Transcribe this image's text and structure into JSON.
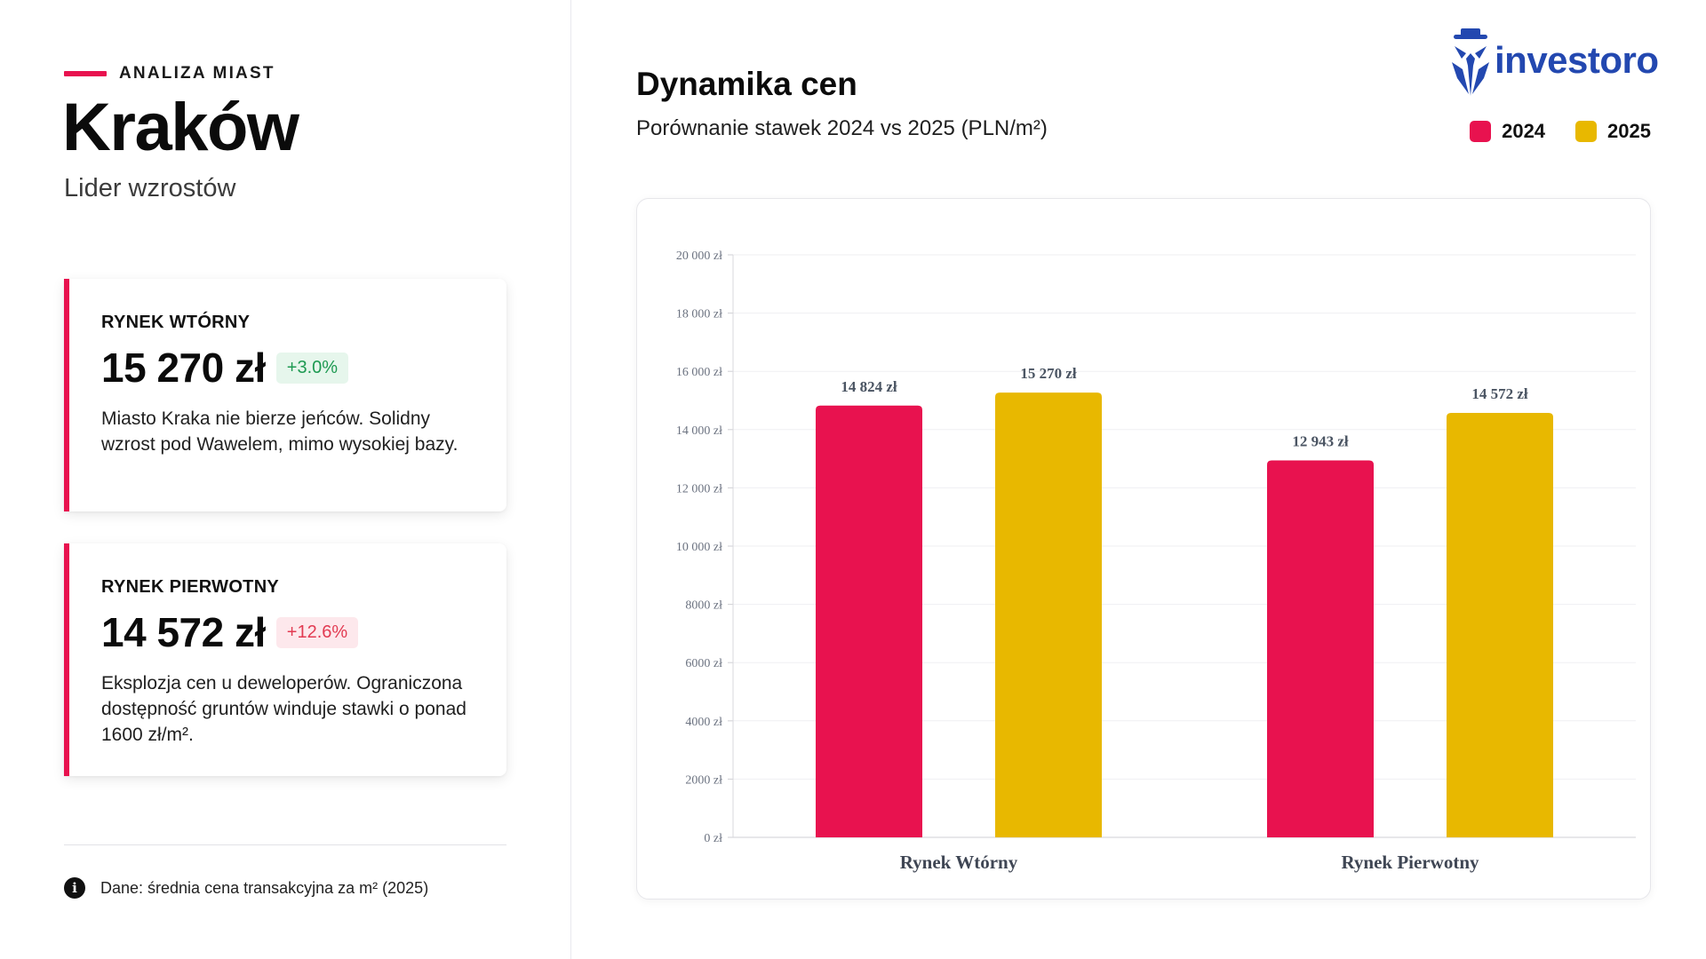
{
  "left": {
    "kicker": "ANALIZA MIAST",
    "city": "Kraków",
    "subtitle": "Lider wzrostów",
    "cards": [
      {
        "title": "RYNEK WTÓRNY",
        "value": "15 270 zł",
        "change": "+3.0%",
        "description": "Miasto Kraka nie bierze jeńców. Solidny wzrost pod Wawelem, mimo wysokiej bazy."
      },
      {
        "title": "RYNEK PIERWOTNY",
        "value": "14 572 zł",
        "change": "+12.6%",
        "description": "Eksplozja cen u deweloperów. Ograniczona dostępność gruntów winduje stawki o ponad 1600 zł/m²."
      }
    ],
    "note": "Dane: średnia cena transakcyjna za m² (2025)",
    "note_icon": "info-icon"
  },
  "header": {
    "title": "Dynamika cen",
    "subtitle": "Porównanie stawek 2024 vs 2025 (PLN/m²)",
    "logo_text": "investoro"
  },
  "colors": {
    "accent": "#e8124f",
    "series_2024": "#e8124f",
    "series_2025": "#e8b800",
    "brand": "#2348b0"
  },
  "chart_data": {
    "type": "bar",
    "title": "Dynamika cen",
    "subtitle": "Porównanie stawek 2024 vs 2025 (PLN/m²)",
    "categories": [
      "Rynek Wtórny",
      "Rynek Pierwotny"
    ],
    "series": [
      {
        "name": "2024",
        "values": [
          14824,
          12943
        ],
        "labels": [
          "14 824 zł",
          "12 943 zł"
        ]
      },
      {
        "name": "2025",
        "values": [
          15270,
          14572
        ],
        "labels": [
          "15 270 zł",
          "14 572 zł"
        ]
      }
    ],
    "ylim": [
      0,
      20000
    ],
    "yticks": [
      0,
      2000,
      4000,
      6000,
      8000,
      10000,
      12000,
      14000,
      16000,
      18000,
      20000
    ],
    "ytick_labels": [
      "0 zł",
      "2000 zł",
      "4000 zł",
      "6000 zł",
      "8000 zł",
      "10 000 zł",
      "12 000 zł",
      "14 000 zł",
      "16 000 zł",
      "18 000 zł",
      "20 000 zł"
    ],
    "xlabel": "",
    "ylabel": "",
    "grid": true,
    "legend": "top-right"
  }
}
